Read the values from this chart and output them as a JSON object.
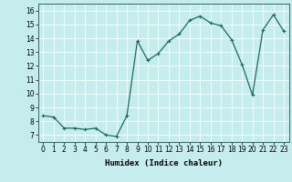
{
  "x": [
    0,
    1,
    2,
    3,
    4,
    5,
    6,
    7,
    8,
    9,
    10,
    11,
    12,
    13,
    14,
    15,
    16,
    17,
    18,
    19,
    20,
    21,
    22,
    23
  ],
  "y": [
    8.4,
    8.3,
    7.5,
    7.5,
    7.4,
    7.5,
    7.0,
    6.9,
    8.4,
    13.8,
    12.4,
    12.9,
    13.8,
    14.3,
    15.3,
    15.6,
    15.1,
    14.9,
    13.9,
    12.1,
    9.9,
    14.6,
    15.7,
    14.5
  ],
  "line_color": "#1a6b5e",
  "marker": "+",
  "marker_size": 3,
  "marker_edge_width": 0.8,
  "bg_color": "#c5eded",
  "grid_color": "#ffffff",
  "xlabel": "Humidex (Indice chaleur)",
  "ylim": [
    6.5,
    16.5
  ],
  "xlim": [
    -0.5,
    23.5
  ],
  "yticks": [
    7,
    8,
    9,
    10,
    11,
    12,
    13,
    14,
    15,
    16
  ],
  "xticks": [
    0,
    1,
    2,
    3,
    4,
    5,
    6,
    7,
    8,
    9,
    10,
    11,
    12,
    13,
    14,
    15,
    16,
    17,
    18,
    19,
    20,
    21,
    22,
    23
  ],
  "xlabel_fontsize": 6.5,
  "tick_fontsize": 5.5,
  "line_width": 0.9
}
